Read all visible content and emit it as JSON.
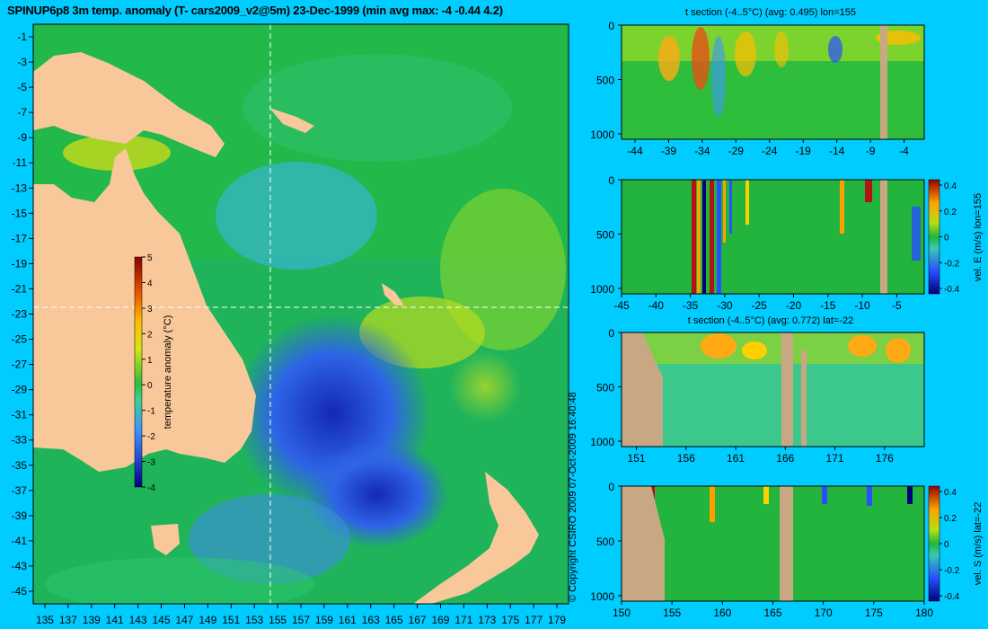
{
  "title": "SPINUP6p8 3m temp. anomaly (T- cars2009_v2@5m) 23-Dec-1999 (min avg max: -4 -0.44 4.2)",
  "copyright": "© Copyright CSIRO 2009   07-Oct-2009 16:40:48",
  "colors": {
    "background": "#00ccff",
    "land": "#f9c89a",
    "section_land": "#c8a882",
    "guides": "#ffffff"
  },
  "map": {
    "lon_ticks": [
      "135",
      "137",
      "139",
      "141",
      "143",
      "145",
      "147",
      "149",
      "151",
      "153",
      "155",
      "157",
      "159",
      "161",
      "163",
      "165",
      "167",
      "169",
      "171",
      "173",
      "175",
      "177",
      "179"
    ],
    "lat_ticks": [
      "-1",
      "-3",
      "-5",
      "-7",
      "-9",
      "-11",
      "-13",
      "-15",
      "-17",
      "-19",
      "-21",
      "-23",
      "-25",
      "-27",
      "-29",
      "-31",
      "-33",
      "-35",
      "-37",
      "-39",
      "-41",
      "-43",
      "-45"
    ],
    "xlim": [
      134,
      180
    ],
    "ylim": [
      -46,
      0
    ],
    "section_lon": 155,
    "section_lat": -22,
    "colorbar": {
      "label": "temperature anomaly (°C)",
      "ticks": [
        "5",
        "4",
        "3",
        "2",
        "1",
        "0",
        "-1",
        "-2",
        "-3",
        "-4"
      ]
    }
  },
  "panels": [
    {
      "title": "t section (-4..5°C) (avg: 0.495) lon=155",
      "x_ticks": [
        "-44",
        "-39",
        "-34",
        "-29",
        "-24",
        "-19",
        "-14",
        "-9",
        "-4"
      ],
      "y_ticks": [
        "0",
        "500",
        "1000"
      ]
    },
    {
      "title": "",
      "x_ticks": [
        "-45",
        "-40",
        "-35",
        "-30",
        "-25",
        "-20",
        "-15",
        "-10",
        "-5"
      ],
      "y_ticks": [
        "0",
        "500",
        "1000"
      ],
      "colorbar": {
        "label": "vel. E (m/s) lon=155",
        "ticks": [
          "0.4",
          "0.2",
          "0",
          "-0.2",
          "-0.4"
        ]
      }
    },
    {
      "title": "t section (-4..5°C) (avg: 0.772) lat=-22",
      "x_ticks": [
        "151",
        "156",
        "161",
        "166",
        "171",
        "176"
      ],
      "y_ticks": [
        "0",
        "500",
        "1000"
      ]
    },
    {
      "title": "",
      "x_ticks": [
        "150",
        "155",
        "160",
        "165",
        "170",
        "175",
        "180"
      ],
      "y_ticks": [
        "0",
        "500",
        "1000"
      ],
      "colorbar": {
        "label": "vel. S (m/s) lat=-22",
        "ticks": [
          "0.4",
          "0.2",
          "0",
          "-0.2",
          "-0.4"
        ]
      }
    }
  ],
  "chart_data": [
    {
      "type": "heatmap",
      "title": "SPINUP6p8 3m temp. anomaly (T- cars2009_v2@5m) 23-Dec-1999 (min avg max: -4 -0.44 4.2)",
      "xlabel": "",
      "ylabel": "",
      "xlim": [
        134,
        180
      ],
      "ylim": [
        -46,
        0
      ],
      "colorbar_range": [
        -4,
        5
      ],
      "colorbar_label": "temperature anomaly (°C)",
      "min": -4,
      "avg": -0.44,
      "max": 4.2
    },
    {
      "type": "heatmap",
      "title": "t section (-4..5°C) (avg: 0.495) lon=155",
      "xlim": [
        -46,
        -1
      ],
      "ylim": [
        1050,
        0
      ],
      "avg": 0.495,
      "range": [
        -4,
        5
      ]
    },
    {
      "type": "heatmap",
      "title": "",
      "xlim": [
        -45,
        -1
      ],
      "ylim": [
        1050,
        0
      ],
      "colorbar_label": "vel. E (m/s) lon=155",
      "range": [
        -0.45,
        0.45
      ]
    },
    {
      "type": "heatmap",
      "title": "t section (-4..5°C) (avg: 0.772) lat=-22",
      "xlim": [
        149.5,
        180
      ],
      "ylim": [
        1050,
        0
      ],
      "avg": 0.772,
      "range": [
        -4,
        5
      ]
    },
    {
      "type": "heatmap",
      "title": "",
      "xlim": [
        150,
        180
      ],
      "ylim": [
        1050,
        0
      ],
      "colorbar_label": "vel. S (m/s) lat=-22",
      "range": [
        -0.45,
        0.45
      ]
    }
  ]
}
